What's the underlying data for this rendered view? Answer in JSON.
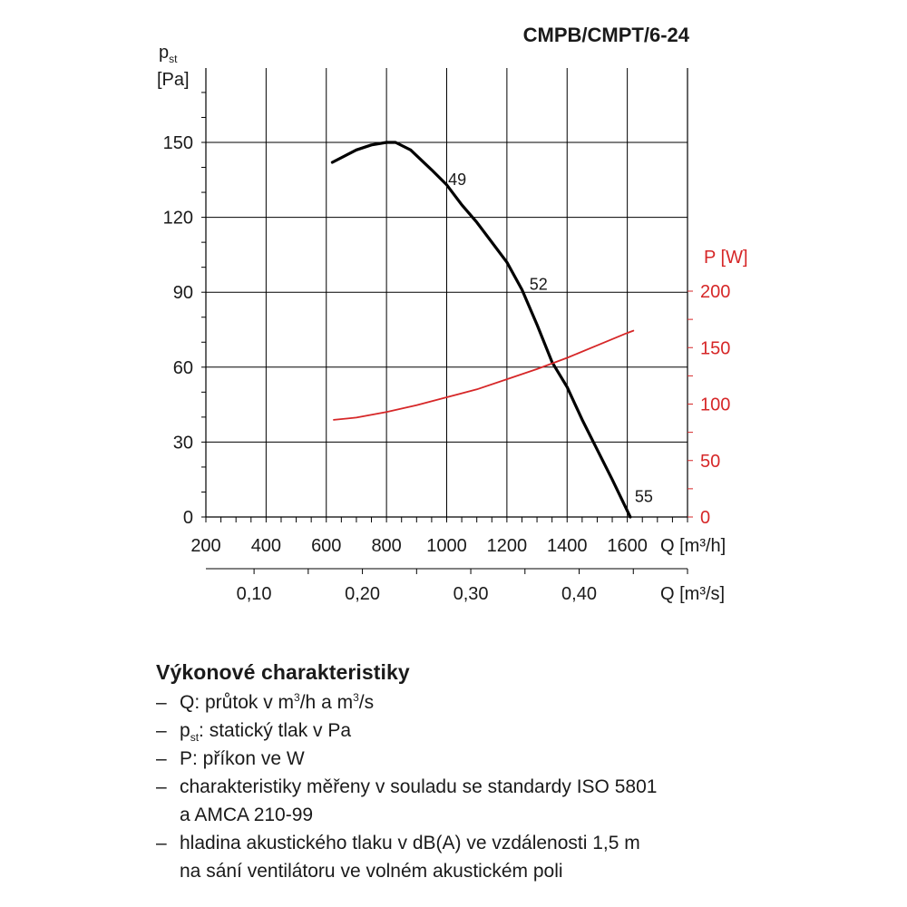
{
  "chart_data": {
    "type": "line",
    "title": "CMPB/CMPT/6-24",
    "x_axis": {
      "label": "Q [m³/h]",
      "range": [
        200,
        1800
      ],
      "ticks": [
        200,
        400,
        600,
        800,
        1000,
        1200,
        1400,
        1600
      ],
      "tick_labels": [
        "200",
        "400",
        "600",
        "800",
        "1000",
        "1200",
        "1400",
        "1600"
      ]
    },
    "x_axis_secondary": {
      "label": "Q [m³/s]",
      "ticks": [
        0.1,
        0.2,
        0.3,
        0.4
      ],
      "tick_labels": [
        "0,10",
        "0,20",
        "0,30",
        "0,40"
      ]
    },
    "y_axis": {
      "label_main": "p",
      "label_sub": "st",
      "unit": "[Pa]",
      "range": [
        0,
        180
      ],
      "ticks": [
        0,
        30,
        60,
        90,
        120,
        150
      ],
      "tick_labels": [
        "0",
        "30",
        "60",
        "90",
        "120",
        "150"
      ]
    },
    "y_axis_secondary": {
      "label": "P [W]",
      "range": [
        0,
        200
      ],
      "ticks": [
        0,
        50,
        100,
        150,
        200
      ],
      "tick_labels": [
        "0",
        "50",
        "100",
        "150",
        "200"
      ],
      "color": "#d62728"
    },
    "grid": true,
    "series": [
      {
        "axis": "left",
        "color": "#000000",
        "x": [
          620,
          700,
          750,
          800,
          830,
          880,
          950,
          1000,
          1050,
          1100,
          1150,
          1200,
          1250,
          1300,
          1350,
          1400,
          1450,
          1500,
          1550,
          1610
        ],
        "y": [
          142,
          147,
          149,
          150,
          150,
          147,
          139,
          133,
          125,
          118,
          110,
          102,
          91,
          77,
          62,
          52,
          39,
          27,
          15,
          0
        ]
      },
      {
        "axis": "right",
        "color": "#d62728",
        "x": [
          625,
          700,
          800,
          900,
          1000,
          1100,
          1200,
          1300,
          1400,
          1500,
          1600,
          1620
        ],
        "y": [
          86,
          88,
          93,
          99,
          106,
          113,
          122,
          131,
          141,
          152,
          163,
          165
        ]
      }
    ],
    "annotations": [
      {
        "text": "49",
        "x": 1035,
        "y": 133
      },
      {
        "text": "52",
        "x": 1305,
        "y": 91
      },
      {
        "text": "55",
        "x": 1655,
        "y": 6
      }
    ]
  },
  "legend": {
    "heading": "Výkonové charakteristiky",
    "bullet": "–",
    "items": [
      {
        "pre": "Q: průtok v m",
        "sup": "3",
        "mid": "/h a m",
        "sup2": "3",
        "post": "/s"
      },
      {
        "pre": "p",
        "sub": "st",
        "post": ": statický tlak v Pa"
      },
      {
        "pre": "P: příkon ve W"
      },
      {
        "pre": "charakteristiky měřeny v souladu se standardy ISO 5801"
      },
      {
        "pre": "a AMCA 210-99",
        "continuation": true
      },
      {
        "pre": "hladina akustického tlaku v dB(A) ve vzdálenosti 1,5 m"
      },
      {
        "pre": "na sání ventilátoru ve volném akustickém poli",
        "continuation": true
      }
    ]
  }
}
